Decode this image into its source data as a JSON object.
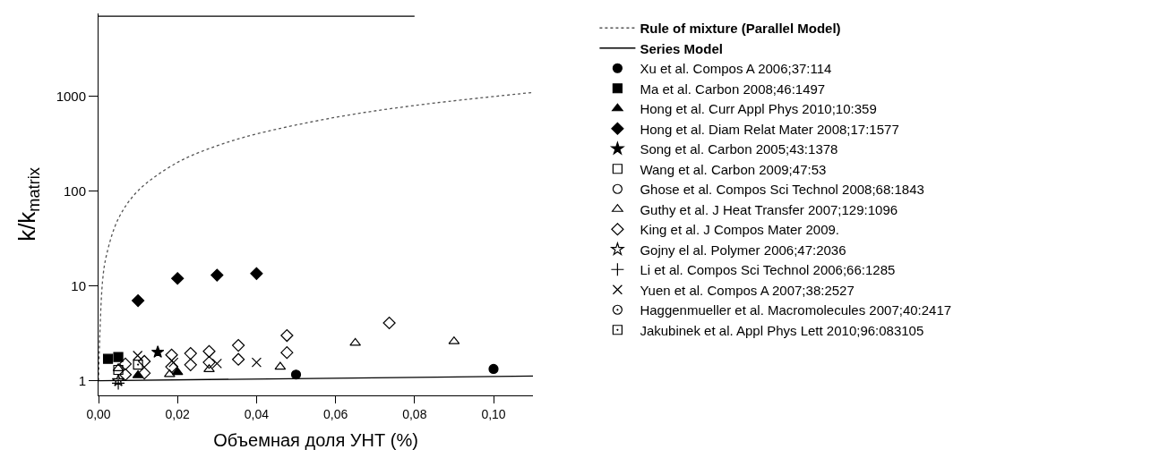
{
  "chart_data": {
    "type": "scatter",
    "xlabel": "Объемная доля УНТ (%)",
    "ylabel": "k/k$_{matrix}$",
    "log": "y",
    "xlim": [
      0,
      0.11
    ],
    "xticks": [
      {
        "value": 0,
        "label": "0,00"
      },
      {
        "value": 0.02,
        "label": "0,02"
      },
      {
        "value": 0.04,
        "label": "0,04"
      },
      {
        "value": 0.06,
        "label": "0,06"
      },
      {
        "value": 0.08,
        "label": "0,08"
      },
      {
        "value": 0.1,
        "label": "0,10"
      }
    ],
    "ylim": [
      0.7,
      7500
    ],
    "yticks": [
      1,
      10,
      100,
      1000
    ],
    "legend": "right",
    "series": [
      {
        "name": "Rule of mixture (Parallel Model)",
        "type": "line",
        "line_style": "dotted",
        "color": "#555555",
        "x": [
          0,
          0.001,
          0.002,
          0.005,
          0.01,
          0.02,
          0.03,
          0.04,
          0.06,
          0.08,
          0.11
        ],
        "values": [
          1,
          11,
          21,
          51,
          101,
          201,
          301,
          401,
          601,
          801,
          1100
        ]
      },
      {
        "name": "Series Model",
        "type": "line",
        "line_style": "solid",
        "color": "#000000",
        "x": [
          0,
          0.11
        ],
        "values": [
          1,
          1.12
        ]
      },
      {
        "name": "Xu et al. Compos A 2006;37:114",
        "marker": "circle",
        "color": "#000000",
        "x": [
          0.05,
          0.1
        ],
        "values": [
          1.16,
          1.33
        ]
      },
      {
        "name": "Ma et al. Carbon 2008;46:1497",
        "marker": "square",
        "color": "#000000",
        "x": [
          0.0024,
          0.005
        ],
        "values": [
          1.7,
          1.78
        ]
      },
      {
        "name": "Hong et al. Curr Appl Phys 2010;10:359",
        "marker": "triangle",
        "color": "#000000",
        "x": [
          0.01,
          0.02
        ],
        "values": [
          1.14,
          1.23
        ]
      },
      {
        "name": "Hong et al. Diam Relat Mater 2008;17:1577",
        "marker": "diamond",
        "color": "#000000",
        "x": [
          0.01,
          0.02,
          0.03,
          0.04
        ],
        "values": [
          7,
          12,
          13,
          13.5
        ]
      },
      {
        "name": "Song et al. Carbon 2005;43:1378",
        "marker": "star",
        "color": "#000000",
        "x": [
          0.015
        ],
        "values": [
          2.0
        ]
      },
      {
        "name": "Wang et al. Carbon 2009;47:53",
        "marker": "square-open",
        "color": "#000000",
        "x": [
          0.005
        ],
        "values": [
          1.3
        ]
      },
      {
        "name": "Ghose et al. Compos Sci Technol 2008;68:1843",
        "marker": "circle-open",
        "color": "#000000",
        "x": [
          null
        ],
        "values": [
          null
        ]
      },
      {
        "name": "Guthy et al. J Heat Transfer 2007;129:1096",
        "marker": "triangle-open",
        "color": "#000000",
        "x": [
          0.005,
          0.018,
          0.028,
          0.046,
          0.065,
          0.09
        ],
        "values": [
          1.35,
          1.17,
          1.32,
          1.4,
          2.5,
          2.6
        ]
      },
      {
        "name": "King et al. J Compos Mater 2009.",
        "marker": "diamond-open",
        "color": "#000000",
        "x": [
          0.0068,
          0.0068,
          0.0116,
          0.0116,
          0.0185,
          0.0185,
          0.0233,
          0.0233,
          0.028,
          0.028,
          0.0354,
          0.0354,
          0.0477,
          0.0477,
          0.0736
        ],
        "values": [
          1.5,
          1.16,
          1.6,
          1.2,
          1.87,
          1.4,
          1.94,
          1.47,
          2.04,
          1.56,
          2.36,
          1.68,
          3.0,
          1.98,
          4.07
        ]
      },
      {
        "name": "Gojny el al. Polymer 2006;47:2036",
        "marker": "star-open",
        "color": "#000000",
        "x": [
          0.005
        ],
        "values": [
          1.0
        ]
      },
      {
        "name": "Li et al. Compos Sci Technol 2006;66:1285",
        "marker": "cross",
        "color": "#000000",
        "x": [
          0.005
        ],
        "values": [
          0.94
        ]
      },
      {
        "name": "Yuen et al. Compos A 2007;38:2527",
        "marker": "x",
        "color": "#000000",
        "x": [
          0.0099,
          0.019,
          0.03,
          0.04
        ],
        "values": [
          1.84,
          1.56,
          1.52,
          1.56
        ]
      },
      {
        "name": "Haggenmueller et al. Macromolecules 2007;40:2417",
        "marker": "circle-half",
        "color": "#000000",
        "x": [
          null
        ],
        "values": [
          null
        ]
      },
      {
        "name": "Jakubinek et al. Appl Phys Lett 2010;96:083105",
        "marker": "square-half",
        "color": "#000000",
        "x": [
          0.01
        ],
        "values": [
          1.48
        ]
      },
      {
        "type": "line",
        "line_style": "solid",
        "color": "#000000",
        "x": [
          0,
          0.08
        ],
        "values": [
          7000,
          7000
        ]
      }
    ]
  }
}
